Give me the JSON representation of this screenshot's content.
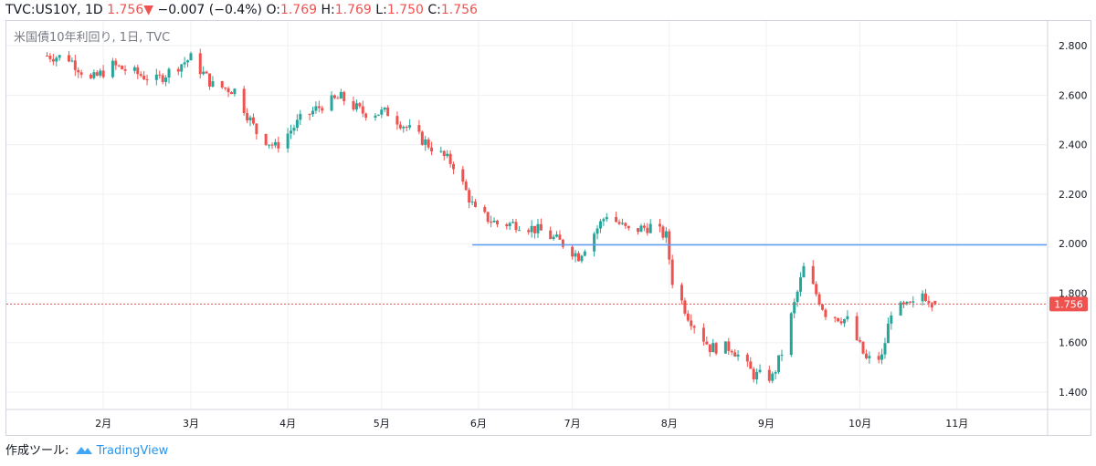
{
  "header": {
    "symbol": "TVC:US10Y, 1D",
    "last": "1.756",
    "arrow": "▼",
    "change": "−0.007 (−0.4%)",
    "o_label": "O:",
    "o_val": "1.769",
    "h_label": "H:",
    "h_val": "1.769",
    "l_label": "L:",
    "l_val": "1.750",
    "c_label": "C:",
    "c_val": "1.756"
  },
  "footer": {
    "made_with": "作成ツール:",
    "brand": "TradingView",
    "brand_icon": "tradingview-logo-icon"
  },
  "colors": {
    "up": "#26a69a",
    "down": "#ef5350",
    "hline": "#5b9cf6",
    "price_line": "#ef5350",
    "grid": "#eef0f3"
  },
  "chart_data": {
    "type": "candlestick",
    "title": "米国債10年利回り, 1日, TVC",
    "ylim": [
      1.33,
      2.9
    ],
    "yticks": [
      "2.800",
      "2.600",
      "2.400",
      "2.200",
      "2.000",
      "1.800",
      "1.600",
      "1.400"
    ],
    "xticks": [
      "2月",
      "3月",
      "4月",
      "5月",
      "6月",
      "7月",
      "8月",
      "9月",
      "10月",
      "11月"
    ],
    "last_price_label": "1.756",
    "last_price": 1.756,
    "horizontal_line": {
      "value": 1.995,
      "from_date": "2019-05-30"
    },
    "close_series": [
      {
        "date": "2019-01-14",
        "close": 2.76
      },
      {
        "date": "2019-01-21",
        "close": 2.75
      },
      {
        "date": "2019-01-28",
        "close": 2.66
      },
      {
        "date": "2019-02-04",
        "close": 2.72
      },
      {
        "date": "2019-02-11",
        "close": 2.69
      },
      {
        "date": "2019-02-18",
        "close": 2.66
      },
      {
        "date": "2019-02-25",
        "close": 2.72
      },
      {
        "date": "2019-03-01",
        "close": 2.75
      },
      {
        "date": "2019-03-08",
        "close": 2.64
      },
      {
        "date": "2019-03-15",
        "close": 2.62
      },
      {
        "date": "2019-03-22",
        "close": 2.45
      },
      {
        "date": "2019-03-28",
        "close": 2.39
      },
      {
        "date": "2019-04-05",
        "close": 2.5
      },
      {
        "date": "2019-04-12",
        "close": 2.56
      },
      {
        "date": "2019-04-18",
        "close": 2.59
      },
      {
        "date": "2019-04-25",
        "close": 2.53
      },
      {
        "date": "2019-05-03",
        "close": 2.53
      },
      {
        "date": "2019-05-10",
        "close": 2.46
      },
      {
        "date": "2019-05-17",
        "close": 2.39
      },
      {
        "date": "2019-05-24",
        "close": 2.32
      },
      {
        "date": "2019-05-31",
        "close": 2.13
      },
      {
        "date": "2019-06-07",
        "close": 2.08
      },
      {
        "date": "2019-06-14",
        "close": 2.08
      },
      {
        "date": "2019-06-21",
        "close": 2.05
      },
      {
        "date": "2019-06-28",
        "close": 2.0
      },
      {
        "date": "2019-07-03",
        "close": 1.95
      },
      {
        "date": "2019-07-12",
        "close": 2.12
      },
      {
        "date": "2019-07-19",
        "close": 2.05
      },
      {
        "date": "2019-07-26",
        "close": 2.07
      },
      {
        "date": "2019-07-31",
        "close": 2.03
      },
      {
        "date": "2019-08-02",
        "close": 1.85
      },
      {
        "date": "2019-08-07",
        "close": 1.71
      },
      {
        "date": "2019-08-14",
        "close": 1.58
      },
      {
        "date": "2019-08-21",
        "close": 1.58
      },
      {
        "date": "2019-08-28",
        "close": 1.47
      },
      {
        "date": "2019-09-03",
        "close": 1.46
      },
      {
        "date": "2019-09-06",
        "close": 1.56
      },
      {
        "date": "2019-09-13",
        "close": 1.9
      },
      {
        "date": "2019-09-20",
        "close": 1.72
      },
      {
        "date": "2019-09-27",
        "close": 1.69
      },
      {
        "date": "2019-10-03",
        "close": 1.53
      },
      {
        "date": "2019-10-08",
        "close": 1.54
      },
      {
        "date": "2019-10-11",
        "close": 1.73
      },
      {
        "date": "2019-10-18",
        "close": 1.75
      },
      {
        "date": "2019-10-21",
        "close": 1.8
      },
      {
        "date": "2019-10-25",
        "close": 1.756
      }
    ]
  }
}
